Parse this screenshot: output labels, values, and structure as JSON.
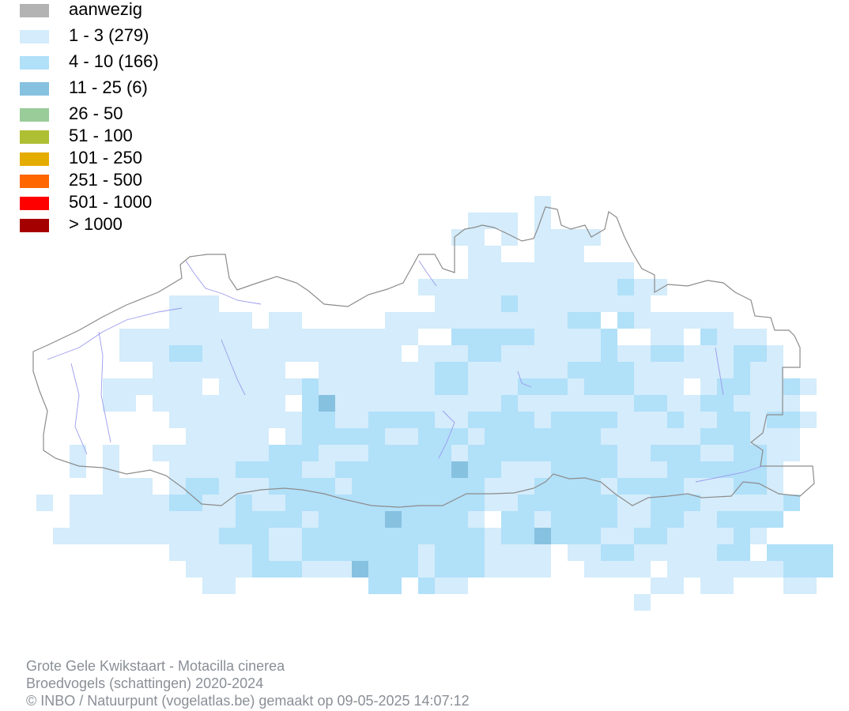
{
  "legend": {
    "items": [
      {
        "label": "aanwezig",
        "color": "#b3b3b3"
      },
      {
        "label": "1 - 3 (279)",
        "color": "#d4ecfb"
      },
      {
        "label": "4 - 10 (166)",
        "color": "#b1e0f9"
      },
      {
        "label": "11 - 25 (6)",
        "color": "#87c1e0"
      },
      {
        "label": "26 - 50",
        "color": "#99cc99"
      },
      {
        "label": "51 - 100",
        "color": "#aebf33"
      },
      {
        "label": "101 - 250",
        "color": "#e5ac00"
      },
      {
        "label": "251 - 500",
        "color": "#ff6600"
      },
      {
        "label": "501 - 1000",
        "color": "#ff0000"
      },
      {
        "label": "> 1000",
        "color": "#a50000"
      }
    ]
  },
  "map": {
    "cells": {
      "light": "#d4ecfb",
      "medium": "#b1e0f9",
      "dark": "#87c1e0"
    },
    "border_color": "#8c8c8c",
    "water_color": "#9a9aee"
  },
  "footer": {
    "line1": "Grote Gele Kwikstaart - Motacilla cinerea",
    "line2": "Broedvogels (schattingen) 2020-2024",
    "line3": "© INBO / Natuurpunt (vogelatlas.be) gemaakt op 09-05-2025 14:07:12"
  }
}
